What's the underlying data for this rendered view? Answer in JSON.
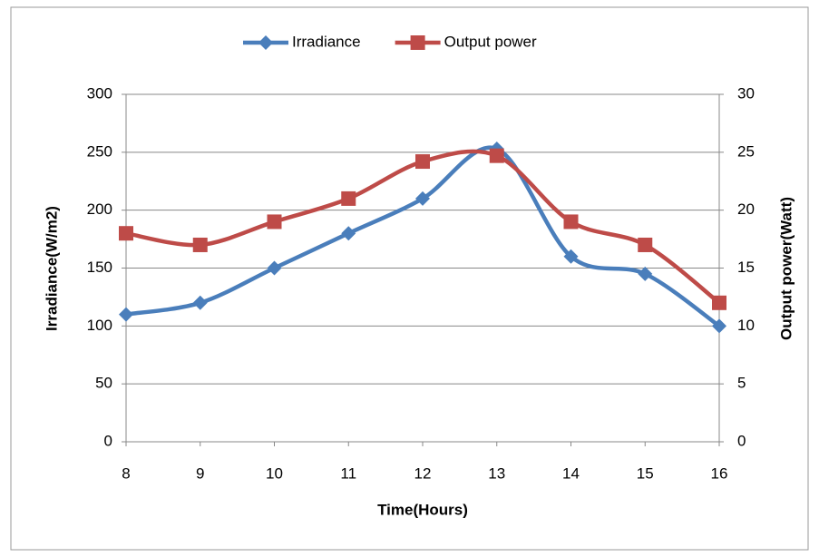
{
  "chart_data": {
    "type": "line",
    "smooth": true,
    "x_label": "Time(Hours)",
    "y_label": "Irradiance(W/m2)",
    "y2_label": "Output power(Watt)",
    "x": [
      8,
      9,
      10,
      11,
      12,
      13,
      14,
      15,
      16
    ],
    "series": [
      {
        "name": "Irradiance",
        "color": "#4a7ebb",
        "marker": "diamond",
        "axis": "y",
        "values": [
          110,
          120,
          150,
          180,
          210,
          253,
          160,
          145,
          100
        ]
      },
      {
        "name": "Output power",
        "color": "#be4b48",
        "marker": "square",
        "axis": "y2",
        "values": [
          18,
          17,
          19,
          21,
          24.2,
          24.7,
          19,
          17,
          12
        ]
      }
    ],
    "xlim": [
      8,
      16
    ],
    "xticks": [
      8,
      9,
      10,
      11,
      12,
      13,
      14,
      15,
      16
    ],
    "ylim": [
      0,
      300
    ],
    "yticks": [
      0,
      50,
      100,
      150,
      200,
      250,
      300
    ],
    "y2lim": [
      0,
      30
    ],
    "y2ticks": [
      0,
      5,
      10,
      15,
      20,
      25,
      30
    ],
    "grid": true,
    "legend": "top"
  }
}
